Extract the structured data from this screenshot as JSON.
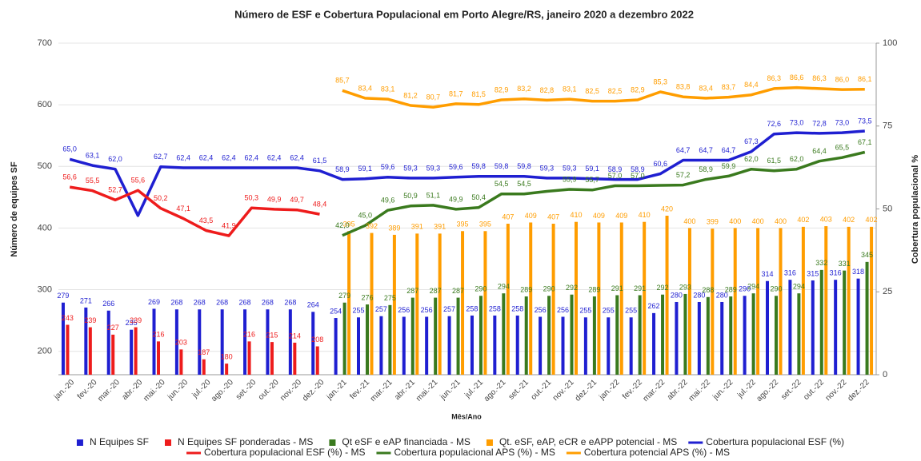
{
  "chart_data": {
    "type": "combo",
    "title": "Número de ESF e Cobertura Populacional em Porto Alegre/RS, janeiro 2020 a dezembro 2022",
    "x_label": "Mês/Ano",
    "y_label": "Número de equipes SF",
    "y2_label": "Cobertura populacional %",
    "categories": [
      "jan.-20",
      "fev.-20",
      "mar.-20",
      "abr.-20",
      "mai.-20",
      "jun.-20",
      "jul.-20",
      "ago.-20",
      "set.-20",
      "out.-20",
      "nov.-20",
      "dez.-20",
      "jan.-21",
      "fev.-21",
      "mar.-21",
      "abr.-21",
      "mai.-21",
      "jun.-21",
      "jul.-21",
      "ago.-21",
      "set.-21",
      "out.-21",
      "nov.-21",
      "dez.-21",
      "jan.-22",
      "fev.-22",
      "mar.-22",
      "abr.-22",
      "mai.-22",
      "jun.-22",
      "jul.-22",
      "ago.-22",
      "set.-22",
      "out.-22",
      "nov.-22",
      "dez.-22"
    ],
    "ylim": [
      162,
      700
    ],
    "yticks": [
      200,
      300,
      400,
      500,
      600,
      700
    ],
    "y2lim": [
      0,
      100
    ],
    "y2ticks": [
      0,
      25,
      50,
      75,
      100
    ],
    "series": [
      {
        "name": "N Equipes SF",
        "kind": "bar",
        "color": "#1f1fd1",
        "values": [
          279,
          271,
          266,
          235,
          269,
          268,
          268,
          268,
          268,
          268,
          268,
          264,
          254,
          255,
          257,
          256,
          256,
          257,
          258,
          258,
          258,
          256,
          256,
          255,
          255,
          255,
          262,
          280,
          280,
          280,
          290,
          314,
          316,
          315,
          316,
          318
        ]
      },
      {
        "name": "N Equipes SF ponderadas - MS",
        "kind": "bar",
        "color": "#ee1c1c",
        "values": [
          243,
          239,
          227,
          239,
          216,
          203,
          187,
          180,
          216,
          215,
          214,
          208,
          null,
          null,
          null,
          null,
          null,
          null,
          null,
          null,
          null,
          null,
          null,
          null,
          null,
          null,
          null,
          null,
          null,
          null,
          null,
          null,
          null,
          null,
          null,
          null
        ]
      },
      {
        "name": "Qt eSF e eAP financiada - MS",
        "kind": "bar",
        "color": "#3a7a1e",
        "values": [
          null,
          null,
          null,
          null,
          null,
          null,
          null,
          null,
          null,
          null,
          null,
          null,
          279,
          276,
          275,
          287,
          287,
          287,
          290,
          294,
          289,
          290,
          292,
          289,
          291,
          291,
          292,
          293,
          288,
          289,
          294,
          290,
          294,
          332,
          331,
          345
        ]
      },
      {
        "name": "Qt. eSF, eAP, eCR e eAPP potencial - MS",
        "kind": "bar",
        "color": "#ff9d00",
        "values": [
          null,
          null,
          null,
          null,
          null,
          null,
          null,
          null,
          null,
          null,
          null,
          null,
          395,
          392,
          389,
          391,
          391,
          395,
          395,
          407,
          409,
          407,
          410,
          409,
          409,
          410,
          420,
          400,
          399,
          400,
          400,
          400,
          402,
          403,
          402,
          402
        ]
      },
      {
        "name": "Cobertura populacional ESF (%)",
        "kind": "line",
        "axis": "y2",
        "color": "#1f1fd1",
        "values": [
          65.0,
          63.1,
          62.0,
          48.0,
          62.7,
          62.4,
          62.4,
          62.4,
          62.4,
          62.4,
          62.4,
          61.5,
          58.9,
          59.1,
          59.6,
          59.3,
          59.3,
          59.6,
          59.8,
          59.8,
          59.8,
          59.3,
          59.3,
          59.1,
          58.9,
          58.9,
          60.6,
          64.7,
          64.7,
          64.7,
          67.3,
          72.6,
          73.0,
          72.8,
          73.0,
          73.5
        ],
        "value_labels": [
          "65,0",
          "63,1",
          "62,0",
          null,
          "62,7",
          "62,4",
          "62,4",
          "62,4",
          "62,4",
          "62,4",
          "62,4",
          "61,5",
          "58,9",
          "59,1",
          "59,6",
          "59,3",
          "59,3",
          "59,6",
          "59,8",
          "59,8",
          "59,8",
          "59,3",
          "59,3",
          "59,1",
          "58,9",
          "58,9",
          "60,6",
          "64,7",
          "64,7",
          "64,7",
          "67,3",
          "72,6",
          "73,0",
          "72,8",
          "73,0",
          "73,5"
        ]
      },
      {
        "name": "Cobertura populacional ESF (%) - MS",
        "kind": "line",
        "axis": "y2",
        "color": "#ee1c1c",
        "values": [
          56.6,
          55.5,
          52.7,
          55.6,
          50.2,
          47.1,
          43.5,
          41.9,
          50.3,
          49.9,
          49.7,
          48.4,
          null,
          null,
          null,
          null,
          null,
          null,
          null,
          null,
          null,
          null,
          null,
          null,
          null,
          null,
          null,
          null,
          null,
          null,
          null,
          null,
          null,
          null,
          null,
          null
        ],
        "value_labels": [
          "56,6",
          "55,5",
          "52,7",
          "55,6",
          "50,2",
          "47,1",
          "43,5",
          "41,9",
          "50,3",
          "49,9",
          "49,7",
          "48,4",
          null,
          null,
          null,
          null,
          null,
          null,
          null,
          null,
          null,
          null,
          null,
          null,
          null,
          null,
          null,
          null,
          null,
          null,
          null,
          null,
          null,
          null,
          null,
          null
        ]
      },
      {
        "name": "Cobertura populacional APS (%) - MS",
        "kind": "line",
        "axis": "y2",
        "color": "#3a7a1e",
        "values": [
          null,
          null,
          null,
          null,
          null,
          null,
          null,
          null,
          null,
          null,
          null,
          null,
          42.0,
          45.0,
          49.6,
          50.9,
          51.1,
          49.9,
          50.4,
          54.5,
          54.5,
          55.3,
          55.9,
          55.7,
          57.0,
          57.0,
          57.1,
          57.2,
          58.9,
          59.9,
          62.0,
          61.5,
          62.0,
          64.4,
          65.5,
          67.1
        ],
        "value_labels": [
          null,
          null,
          null,
          null,
          null,
          null,
          null,
          null,
          null,
          null,
          null,
          null,
          "42,0",
          "45,0",
          "49,6",
          "50,9",
          "51,1",
          "49,9",
          "50,4",
          "54,5",
          "54,5",
          null,
          "55,9",
          "55,7",
          "57,0",
          "57,0",
          null,
          "57,2",
          "58,9",
          "59,9",
          "62,0",
          "61,5",
          "62,0",
          "64,4",
          "65,5",
          "67,1"
        ]
      },
      {
        "name": "Cobertura potencial APS (%) - MS",
        "kind": "line",
        "axis": "y2",
        "color": "#ff9d00",
        "values": [
          null,
          null,
          null,
          null,
          null,
          null,
          null,
          null,
          null,
          null,
          null,
          null,
          85.7,
          83.4,
          83.1,
          81.2,
          80.7,
          81.7,
          81.5,
          82.9,
          83.2,
          82.8,
          83.1,
          82.5,
          82.5,
          82.9,
          85.3,
          83.8,
          83.4,
          83.7,
          84.4,
          86.3,
          86.6,
          86.3,
          86.0,
          86.1
        ],
        "value_labels": [
          null,
          null,
          null,
          null,
          null,
          null,
          null,
          null,
          null,
          null,
          null,
          null,
          "85,7",
          "83,4",
          "83,1",
          "81,2",
          "80,7",
          "81,7",
          "81,5",
          "82,9",
          "83,2",
          "82,8",
          "83,1",
          "82,5",
          "82,5",
          "82,9",
          "85,3",
          "83,8",
          "83,4",
          "83,7",
          "84,4",
          "86,3",
          "86,6",
          "86,3",
          "86,0",
          "86,1"
        ]
      }
    ]
  }
}
